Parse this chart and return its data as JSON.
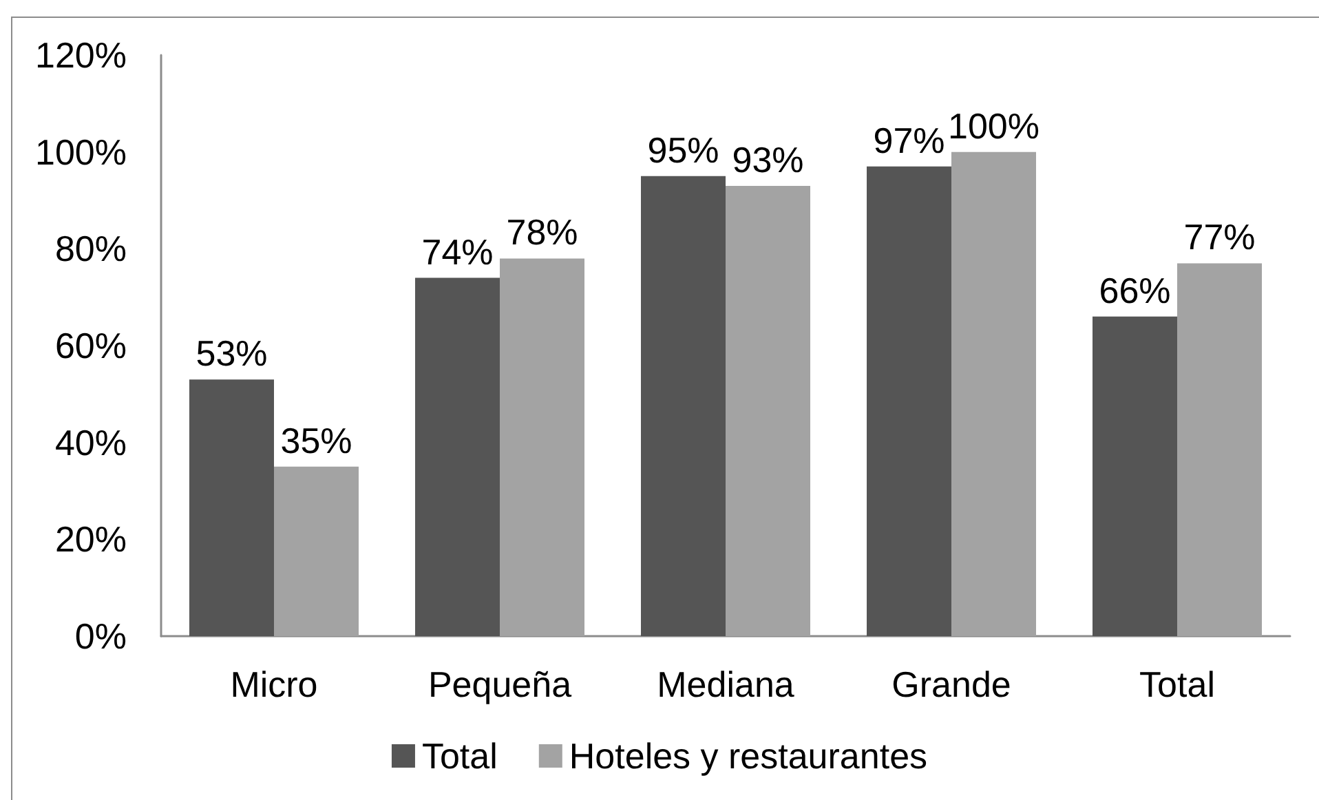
{
  "chart_data": {
    "type": "bar",
    "categories": [
      "Micro",
      "Pequeña",
      "Mediana",
      "Grande",
      "Total"
    ],
    "series": [
      {
        "name": "Total",
        "color": "#555555",
        "values": [
          53,
          74,
          95,
          97,
          66
        ],
        "value_labels": [
          "53%",
          "74%",
          "95%",
          "97%",
          "66%"
        ]
      },
      {
        "name": "Hoteles y restaurantes",
        "color": "#a3a3a3",
        "values": [
          35,
          78,
          93,
          100,
          77
        ],
        "value_labels": [
          "35%",
          "78%",
          "93%",
          "100%",
          "77%"
        ]
      }
    ],
    "ylim": [
      0,
      120
    ],
    "yticks": [
      {
        "value": 0,
        "label": "0%"
      },
      {
        "value": 20,
        "label": "20%"
      },
      {
        "value": 40,
        "label": "40%"
      },
      {
        "value": 60,
        "label": "60%"
      },
      {
        "value": 80,
        "label": "80%"
      },
      {
        "value": 100,
        "label": "100%"
      },
      {
        "value": 120,
        "label": "120%"
      }
    ],
    "legend": "bottom"
  }
}
